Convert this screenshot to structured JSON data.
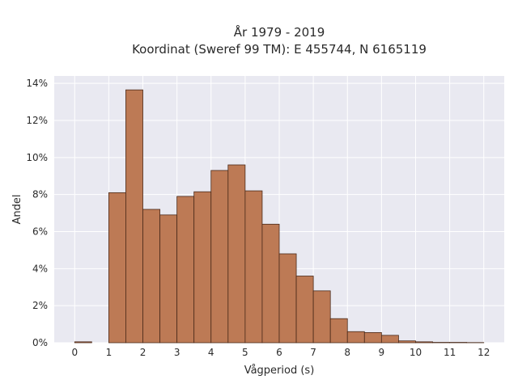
{
  "chart_data": {
    "type": "bar",
    "title": [
      "År 1979 - 2019",
      "Koordinat (Sweref 99 TM): E 455744, N 6165119"
    ],
    "xlabel": "Vågperiod (s)",
    "ylabel": "Andel",
    "bin_width": 0.5,
    "bin_starts": [
      0,
      0.5,
      1,
      1.5,
      2,
      2.5,
      3,
      3.5,
      4,
      4.5,
      5,
      5.5,
      6,
      6.5,
      7,
      7.5,
      8,
      8.5,
      9,
      9.5,
      10,
      10.5,
      11,
      11.5
    ],
    "values": [
      0.05,
      0,
      8.1,
      13.65,
      7.2,
      6.9,
      7.9,
      8.15,
      9.3,
      9.6,
      8.2,
      6.4,
      4.8,
      3.6,
      2.8,
      1.3,
      0.6,
      0.55,
      0.4,
      0.1,
      0.05,
      0.02,
      0.02,
      0.01
    ],
    "xlim": [
      -0.6,
      12.6
    ],
    "ylim": [
      0,
      14.4
    ],
    "xticks": [
      0,
      1,
      2,
      3,
      4,
      5,
      6,
      7,
      8,
      9,
      10,
      11,
      12
    ],
    "yticks": [
      0,
      2,
      4,
      6,
      8,
      10,
      12,
      14
    ],
    "ytick_suffix": "%",
    "grid": true,
    "colors": {
      "bar_fill": "#bd7a55",
      "bar_edge": "#4a2a1a",
      "plot_bg": "#e9e9f1",
      "grid": "#ffffff"
    }
  }
}
